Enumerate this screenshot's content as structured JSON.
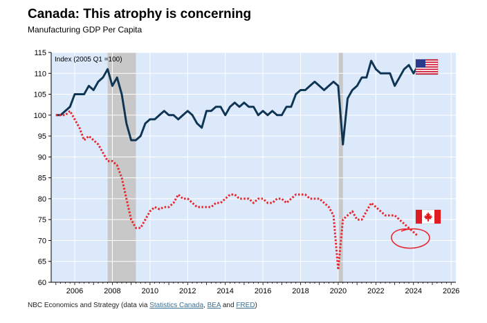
{
  "chart_data": {
    "type": "line",
    "title": "Canada: This atrophy is concerning",
    "subtitle": "Manufacturing GDP Per Capita",
    "ylabel": "Index (2005 Q1 =100)",
    "ylim": [
      60,
      115
    ],
    "xlim": [
      2004.75,
      2026.25
    ],
    "y_ticks": [
      60,
      65,
      70,
      75,
      80,
      85,
      90,
      95,
      100,
      105,
      110,
      115
    ],
    "x_ticks": [
      2006,
      2008,
      2010,
      2012,
      2014,
      2016,
      2018,
      2020,
      2022,
      2024,
      2026
    ],
    "recessions": [
      {
        "start": 2007.75,
        "end": 2009.25
      },
      {
        "start": 2020.0,
        "end": 2020.25
      }
    ],
    "series": [
      {
        "name": "United States",
        "color": "#0f3554",
        "style": "solid",
        "flag": "us-flag",
        "x": [
          2005.0,
          2005.25,
          2005.5,
          2005.75,
          2006.0,
          2006.25,
          2006.5,
          2006.75,
          2007.0,
          2007.25,
          2007.5,
          2007.75,
          2008.0,
          2008.25,
          2008.5,
          2008.75,
          2009.0,
          2009.25,
          2009.5,
          2009.75,
          2010.0,
          2010.25,
          2010.5,
          2010.75,
          2011.0,
          2011.25,
          2011.5,
          2011.75,
          2012.0,
          2012.25,
          2012.5,
          2012.75,
          2013.0,
          2013.25,
          2013.5,
          2013.75,
          2014.0,
          2014.25,
          2014.5,
          2014.75,
          2015.0,
          2015.25,
          2015.5,
          2015.75,
          2016.0,
          2016.25,
          2016.5,
          2016.75,
          2017.0,
          2017.25,
          2017.5,
          2017.75,
          2018.0,
          2018.25,
          2018.5,
          2018.75,
          2019.0,
          2019.25,
          2019.5,
          2019.75,
          2020.0,
          2020.25,
          2020.5,
          2020.75,
          2021.0,
          2021.25,
          2021.5,
          2021.75,
          2022.0,
          2022.25,
          2022.5,
          2022.75,
          2023.0,
          2023.25,
          2023.5,
          2023.75,
          2024.0,
          2024.25
        ],
        "values": [
          100,
          100,
          101,
          102,
          105,
          105,
          105,
          107,
          106,
          108,
          109,
          111,
          107,
          109,
          105,
          98,
          94,
          94,
          95,
          98,
          99,
          99,
          100,
          101,
          100,
          100,
          99,
          100,
          101,
          100,
          98,
          97,
          101,
          101,
          102,
          102,
          100,
          102,
          103,
          102,
          103,
          102,
          102,
          100,
          101,
          100,
          101,
          100,
          100,
          102,
          102,
          105,
          106,
          106,
          107,
          108,
          107,
          106,
          107,
          108,
          107,
          93,
          104,
          106,
          107,
          109,
          109,
          113,
          111,
          110,
          110,
          110,
          107,
          109,
          111,
          112,
          110,
          112
        ]
      },
      {
        "name": "Canada",
        "color": "#e8262d",
        "style": "dotted",
        "flag": "canada-flag",
        "x": [
          2005.0,
          2005.25,
          2005.5,
          2005.75,
          2006.0,
          2006.25,
          2006.5,
          2006.75,
          2007.0,
          2007.25,
          2007.5,
          2007.75,
          2008.0,
          2008.25,
          2008.5,
          2008.75,
          2009.0,
          2009.25,
          2009.5,
          2009.75,
          2010.0,
          2010.25,
          2010.5,
          2010.75,
          2011.0,
          2011.25,
          2011.5,
          2011.75,
          2012.0,
          2012.25,
          2012.5,
          2012.75,
          2013.0,
          2013.25,
          2013.5,
          2013.75,
          2014.0,
          2014.25,
          2014.5,
          2014.75,
          2015.0,
          2015.25,
          2015.5,
          2015.75,
          2016.0,
          2016.25,
          2016.5,
          2016.75,
          2017.0,
          2017.25,
          2017.5,
          2017.75,
          2018.0,
          2018.25,
          2018.5,
          2018.75,
          2019.0,
          2019.25,
          2019.5,
          2019.75,
          2020.0,
          2020.25,
          2020.5,
          2020.75,
          2021.0,
          2021.25,
          2021.5,
          2021.75,
          2022.0,
          2022.25,
          2022.5,
          2022.75,
          2023.0,
          2023.25,
          2023.5,
          2023.75,
          2024.0,
          2024.25
        ],
        "values": [
          100,
          100,
          100,
          101,
          99,
          97,
          94,
          95,
          94,
          93,
          91,
          89,
          89,
          88,
          85,
          80,
          75,
          73,
          73,
          75,
          77,
          78,
          77.5,
          78,
          78,
          79,
          81,
          80,
          80,
          79,
          78,
          78,
          78,
          78,
          79,
          79,
          80,
          81,
          81,
          80,
          80,
          80,
          79,
          80,
          80,
          79,
          79,
          80,
          80,
          79,
          80,
          81,
          81,
          81,
          80,
          80,
          80,
          79,
          78,
          76,
          63,
          75,
          76,
          77,
          75,
          75,
          77,
          79,
          78,
          77,
          76,
          76,
          76,
          75,
          74,
          73,
          72,
          71
        ]
      }
    ],
    "annotation": "red-circle-highlight"
  },
  "footer": {
    "prefix": "NBC Economics and Strategy (data via ",
    "link1": "Statistics Canada",
    "sep1": ", ",
    "link2": "BEA",
    "sep2": " and ",
    "link3": "FRED",
    "suffix": ")"
  }
}
